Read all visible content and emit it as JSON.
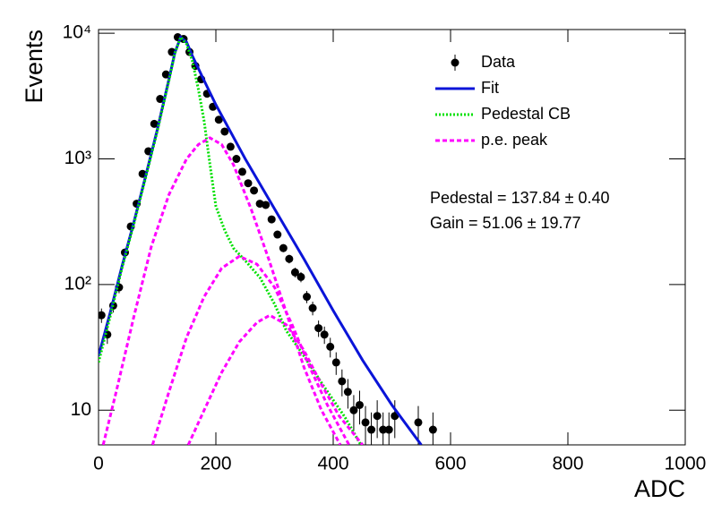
{
  "chart_data": {
    "type": "line",
    "x_label": "ADC",
    "y_label": "Events",
    "xlim": [
      0,
      1000
    ],
    "xticks": [
      0,
      200,
      400,
      600,
      800,
      1000
    ],
    "ylim": [
      5.3,
      10700
    ],
    "log_y": true,
    "yticks": [
      10,
      {
        "value": 100,
        "label": "10²"
      },
      {
        "value": 1000,
        "label": "10³"
      },
      {
        "value": 10000,
        "label": "10⁴"
      }
    ],
    "legend": "upper right",
    "annotations": [
      "Pedestal = 137.84 ± 0.40",
      "Gain = 51.06 ± 19.77"
    ],
    "series": [
      {
        "name": "Data",
        "color": "#000000",
        "style": "points",
        "x": [
          5,
          15,
          25,
          35,
          45,
          55,
          65,
          75,
          85,
          95,
          105,
          115,
          125,
          135,
          145,
          155,
          165,
          175,
          185,
          195,
          205,
          215,
          225,
          235,
          245,
          255,
          265,
          275,
          285,
          295,
          305,
          315,
          325,
          335,
          345,
          355,
          365,
          375,
          385,
          395,
          405,
          415,
          425,
          435,
          445,
          455,
          465,
          475,
          485,
          495,
          505,
          545,
          570
        ],
        "values": [
          57,
          40,
          68,
          95,
          180,
          290,
          440,
          760,
          1150,
          1900,
          3000,
          4700,
          7100,
          9300,
          9000,
          7100,
          5500,
          4300,
          3300,
          2600,
          2050,
          1650,
          1250,
          1000,
          790,
          640,
          560,
          440,
          430,
          330,
          250,
          195,
          160,
          125,
          115,
          80,
          65,
          45,
          40,
          32,
          24,
          17,
          14,
          10,
          11,
          8,
          7,
          9,
          7,
          7,
          9,
          8,
          7
        ],
        "errors": [
          7.5,
          6.3,
          8.2,
          9.7,
          13.4,
          17,
          21,
          27.6,
          34,
          43.6,
          54.8,
          68.6,
          84.3,
          96.4,
          94.9,
          84.3,
          74.2,
          65.6,
          57.4,
          51,
          45.3,
          40.6,
          35.4,
          31.6,
          28.1,
          25.3,
          23.7,
          21,
          20.7,
          18.2,
          15.8,
          14,
          12.6,
          11.2,
          10.7,
          8.9,
          8.1,
          6.7,
          6.3,
          5.7,
          4.9,
          4.1,
          3.7,
          3.2,
          3.3,
          2.8,
          2.6,
          3,
          2.6,
          2.6,
          3,
          2.8,
          2.6
        ]
      },
      {
        "name": "Fit",
        "color": "#0a14d8",
        "style": "solid",
        "x": [
          0,
          20,
          40,
          60,
          80,
          100,
          120,
          130,
          140,
          150,
          160,
          180,
          200,
          250,
          300,
          350,
          400,
          450,
          500,
          550
        ],
        "values": [
          27,
          60,
          140,
          310,
          720,
          1700,
          4300,
          7000,
          9300,
          8500,
          6600,
          4200,
          2700,
          1000,
          400,
          160,
          62,
          25,
          11,
          5.3
        ]
      },
      {
        "name": "Pedestal CB",
        "color": "#00e000",
        "style": "dotted",
        "x": [
          0,
          20,
          40,
          60,
          80,
          100,
          120,
          130,
          140,
          150,
          160,
          170,
          180,
          190,
          200,
          215,
          230,
          250,
          275,
          300,
          320,
          350,
          382,
          420,
          447
        ],
        "values": [
          24,
          56,
          135,
          300,
          700,
          1650,
          4200,
          6900,
          9300,
          8200,
          6000,
          3600,
          2000,
          900,
          420,
          270,
          195,
          155,
          114,
          70,
          43,
          27,
          16,
          8.8,
          5.3
        ]
      },
      {
        "name": "p.e. peak",
        "color": "#ff00ff",
        "style": "dashed",
        "curves": [
          {
            "x": [
              8,
              30,
              60,
              90,
              120,
              150,
              170,
              190,
              210,
              230,
              260,
              290,
              320,
              350,
              380,
              412
            ],
            "values": [
              5.3,
              14,
              55,
              200,
              520,
              1000,
              1300,
              1470,
              1300,
              900,
              400,
              160,
              60,
              22,
              10,
              5.3
            ]
          },
          {
            "x": [
              92,
              120,
              150,
              180,
              210,
              240,
              270,
              300,
              330,
              360,
              390,
              427
            ],
            "values": [
              5.3,
              14,
              38,
              80,
              135,
              168,
              145,
              95,
              48,
              22,
              11,
              5.3
            ]
          },
          {
            "x": [
              153,
              180,
              210,
              240,
              270,
              292,
              320,
              350,
              380,
              410,
              450
            ],
            "values": [
              5.3,
              10,
              20,
              35,
              50,
              57,
              48,
              30,
              16,
              9,
              5.3
            ]
          }
        ]
      }
    ]
  }
}
